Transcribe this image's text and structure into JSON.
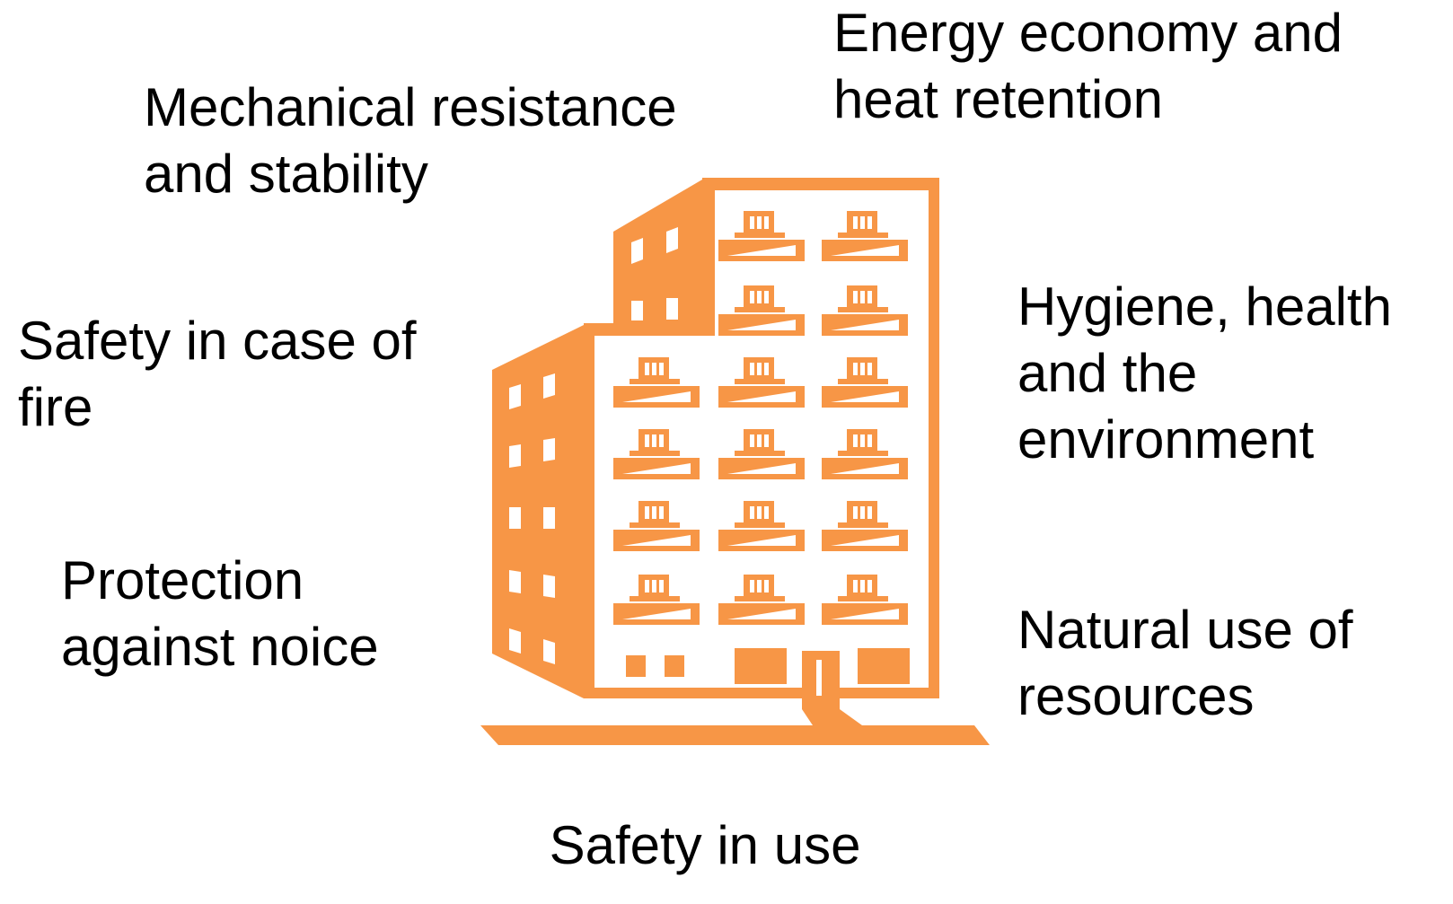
{
  "labels": [
    {
      "lines": [
        "Energy economy and",
        "heat retention"
      ]
    },
    {
      "lines": [
        "Mechanical resistance",
        "and stability"
      ]
    },
    {
      "lines": [
        "Safety in case of",
        "fire"
      ]
    },
    {
      "lines": [
        "Hygiene, health",
        "and the",
        "environment"
      ]
    },
    {
      "lines": [
        "Protection",
        "against noice"
      ]
    },
    {
      "lines": [
        "Natural use of",
        "resources"
      ]
    },
    {
      "lines": [
        "Safety in use"
      ]
    }
  ]
}
